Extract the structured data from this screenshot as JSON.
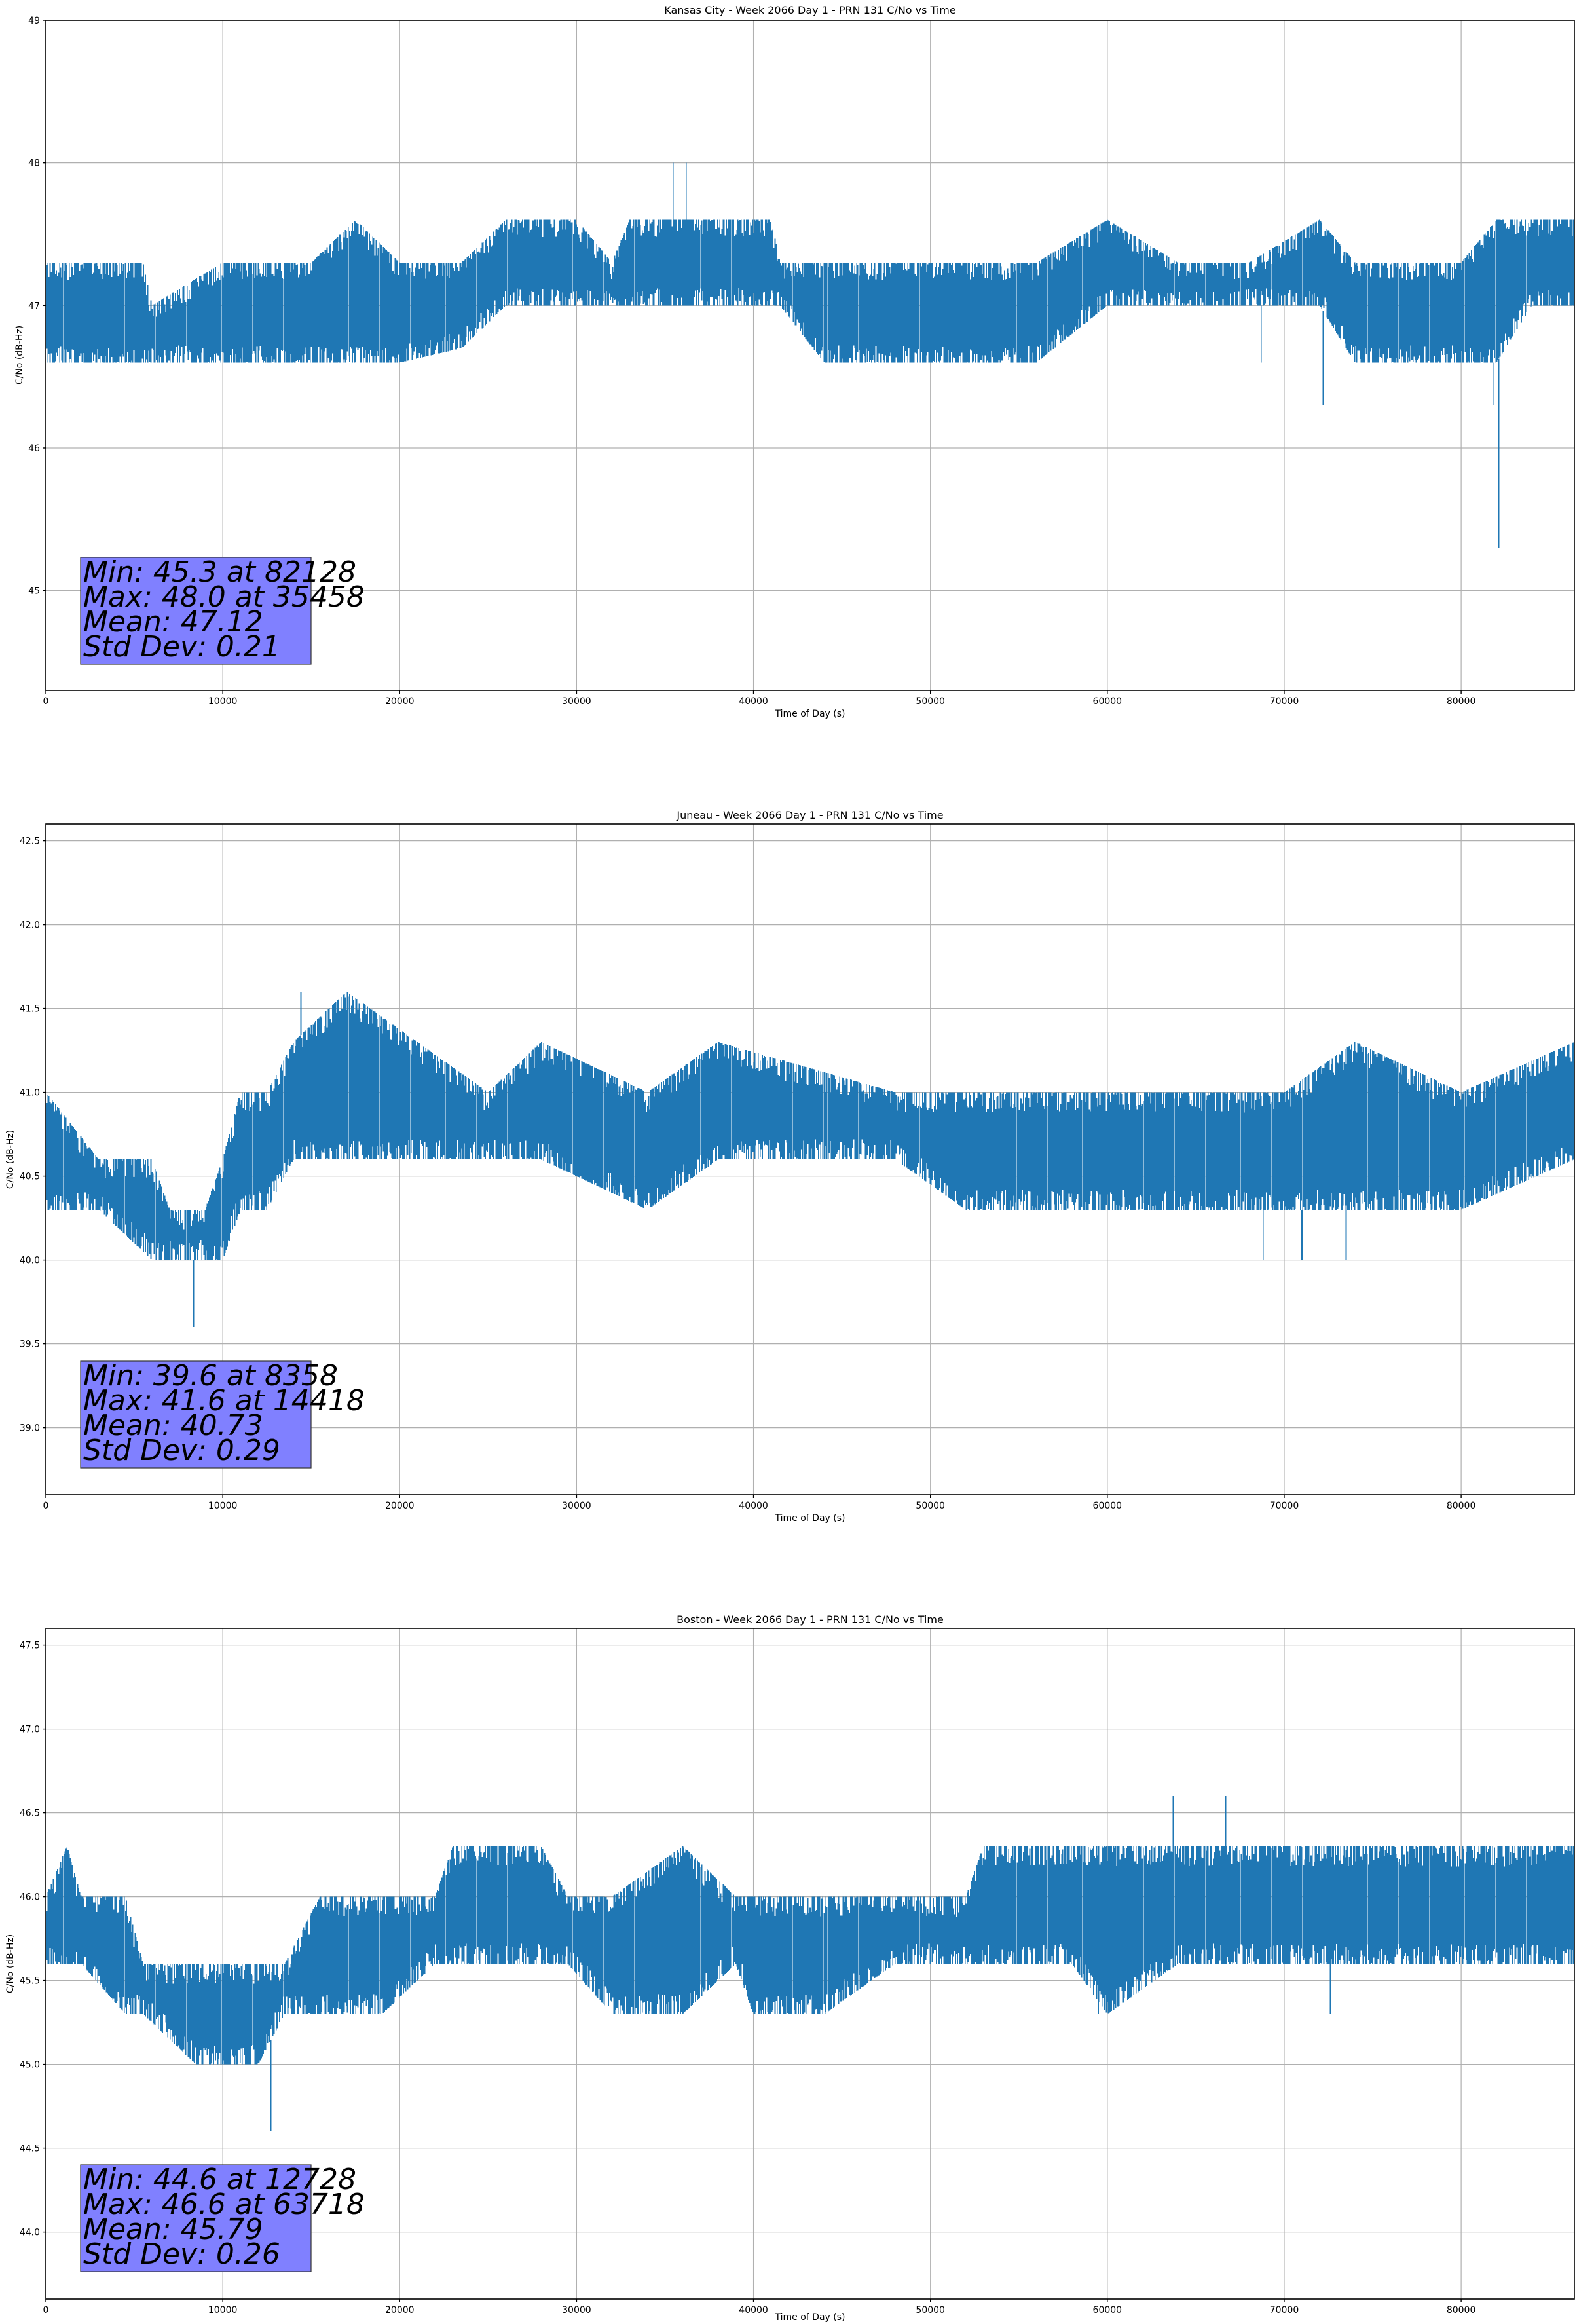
{
  "chart_data": [
    {
      "type": "line",
      "title": "Kansas City - Week 2066 Day 1 - PRN 131 C/No vs Time",
      "xlabel": "Time of Day (s)",
      "ylabel": "C/No (dB-Hz)",
      "xlim": [
        0,
        86400
      ],
      "ylim": [
        44.3,
        49
      ],
      "xticks": [
        0,
        10000,
        20000,
        30000,
        40000,
        50000,
        60000,
        70000,
        80000
      ],
      "yticks": [
        45,
        46,
        47,
        48,
        49
      ],
      "ytick_labels": [
        "45",
        "46",
        "47",
        "48",
        "49"
      ],
      "grid": true,
      "series_color": "#1f77b4",
      "profile": [
        [
          0,
          46.6,
          47.3
        ],
        [
          5500,
          46.6,
          47.3
        ],
        [
          6000,
          46.6,
          47.0
        ],
        [
          10000,
          46.6,
          47.3
        ],
        [
          15000,
          46.6,
          47.3
        ],
        [
          17500,
          46.6,
          47.6
        ],
        [
          20000,
          46.6,
          47.3
        ],
        [
          23500,
          46.7,
          47.3
        ],
        [
          26000,
          47.0,
          47.6
        ],
        [
          30000,
          47.0,
          47.6
        ],
        [
          32000,
          47.0,
          47.3
        ],
        [
          33000,
          47.0,
          47.6
        ],
        [
          35000,
          47.0,
          47.6
        ],
        [
          39000,
          47.0,
          47.6
        ],
        [
          41000,
          47.0,
          47.6
        ],
        [
          41500,
          47.0,
          47.3
        ],
        [
          44000,
          46.6,
          47.3
        ],
        [
          48000,
          46.6,
          47.3
        ],
        [
          52000,
          46.6,
          47.3
        ],
        [
          56000,
          46.6,
          47.3
        ],
        [
          60000,
          47.0,
          47.6
        ],
        [
          64000,
          47.0,
          47.3
        ],
        [
          68000,
          47.0,
          47.3
        ],
        [
          72000,
          47.0,
          47.6
        ],
        [
          74000,
          46.6,
          47.3
        ],
        [
          77000,
          46.6,
          47.3
        ],
        [
          80000,
          46.6,
          47.3
        ],
        [
          82000,
          46.6,
          47.6
        ],
        [
          84000,
          47.0,
          47.6
        ],
        [
          86400,
          47.0,
          47.6
        ]
      ],
      "spikes": [
        [
          35458,
          48.0
        ],
        [
          36200,
          48.0
        ],
        [
          68700,
          46.6
        ],
        [
          72200,
          46.3
        ],
        [
          81800,
          46.3
        ],
        [
          82128,
          45.3
        ]
      ],
      "stats": [
        "Min: 45.3 at 82128",
        "Max: 48.0 at 35458",
        "Mean: 47.12",
        "Std Dev: 0.21"
      ],
      "stats_box_color": "#8080ff"
    },
    {
      "type": "line",
      "title": "Juneau - Week 2066 Day 1 - PRN 131 C/No vs Time",
      "xlabel": "Time of Day (s)",
      "ylabel": "C/No (dB-Hz)",
      "xlim": [
        0,
        86400
      ],
      "ylim": [
        38.6,
        42.6
      ],
      "xticks": [
        0,
        10000,
        20000,
        30000,
        40000,
        50000,
        60000,
        70000,
        80000
      ],
      "yticks": [
        39.0,
        39.5,
        40.0,
        40.5,
        41.0,
        41.5,
        42.0,
        42.5
      ],
      "ytick_labels": [
        "39.0",
        "39.5",
        "40.0",
        "40.5",
        "41.0",
        "41.5",
        "42.0",
        "42.5"
      ],
      "grid": true,
      "series_color": "#1f77b4",
      "profile": [
        [
          0,
          40.3,
          41.0
        ],
        [
          3000,
          40.3,
          40.6
        ],
        [
          6000,
          40.0,
          40.6
        ],
        [
          7000,
          40.0,
          40.3
        ],
        [
          9000,
          40.0,
          40.3
        ],
        [
          10000,
          40.0,
          40.6
        ],
        [
          11000,
          40.3,
          41.0
        ],
        [
          12500,
          40.3,
          41.0
        ],
        [
          14000,
          40.6,
          41.3
        ],
        [
          17000,
          40.6,
          41.6
        ],
        [
          21000,
          40.6,
          41.3
        ],
        [
          25000,
          40.6,
          41.0
        ],
        [
          28000,
          40.6,
          41.3
        ],
        [
          34000,
          40.3,
          41.0
        ],
        [
          38000,
          40.6,
          41.3
        ],
        [
          48000,
          40.6,
          41.0
        ],
        [
          52000,
          40.3,
          41.0
        ],
        [
          60000,
          40.3,
          41.0
        ],
        [
          64000,
          40.3,
          41.0
        ],
        [
          70000,
          40.3,
          41.0
        ],
        [
          74000,
          40.3,
          41.3
        ],
        [
          80000,
          40.3,
          41.0
        ],
        [
          86400,
          40.6,
          41.3
        ]
      ],
      "spikes": [
        [
          8358,
          39.6
        ],
        [
          14418,
          41.6
        ],
        [
          68800,
          40.0
        ],
        [
          71000,
          40.0
        ],
        [
          73500,
          40.0
        ]
      ],
      "stats": [
        "Min: 39.6 at 8358",
        "Max: 41.6 at 14418",
        "Mean: 40.73",
        "Std Dev: 0.29"
      ],
      "stats_box_color": "#8080ff"
    },
    {
      "type": "line",
      "title": "Boston - Week 2066 Day 1 - PRN 131 C/No vs Time",
      "xlabel": "Time of Day (s)",
      "ylabel": "C/No (dB-Hz)",
      "xlim": [
        0,
        86400
      ],
      "ylim": [
        43.6,
        47.6
      ],
      "xticks": [
        0,
        10000,
        20000,
        30000,
        40000,
        50000,
        60000,
        70000,
        80000
      ],
      "yticks": [
        44.0,
        44.5,
        45.0,
        45.5,
        46.0,
        46.5,
        47.0,
        47.5
      ],
      "ytick_labels": [
        "44.0",
        "44.5",
        "45.0",
        "45.5",
        "46.0",
        "46.5",
        "47.0",
        "47.5"
      ],
      "grid": true,
      "series_color": "#1f77b4",
      "profile": [
        [
          0,
          45.6,
          46.0
        ],
        [
          1200,
          45.6,
          46.3
        ],
        [
          2000,
          45.6,
          46.0
        ],
        [
          4500,
          45.3,
          46.0
        ],
        [
          5500,
          45.3,
          45.6
        ],
        [
          8500,
          45.0,
          45.6
        ],
        [
          12000,
          45.0,
          45.6
        ],
        [
          13500,
          45.3,
          45.6
        ],
        [
          15500,
          45.3,
          46.0
        ],
        [
          19000,
          45.3,
          46.0
        ],
        [
          22000,
          45.6,
          46.0
        ],
        [
          23000,
          45.6,
          46.3
        ],
        [
          28000,
          45.6,
          46.3
        ],
        [
          29500,
          45.6,
          46.0
        ],
        [
          32000,
          45.3,
          46.0
        ],
        [
          36000,
          45.3,
          46.3
        ],
        [
          39000,
          45.6,
          46.0
        ],
        [
          40000,
          45.3,
          46.0
        ],
        [
          44000,
          45.3,
          46.0
        ],
        [
          48000,
          45.6,
          46.0
        ],
        [
          52000,
          45.6,
          46.0
        ],
        [
          53000,
          45.6,
          46.3
        ],
        [
          58000,
          45.6,
          46.3
        ],
        [
          60000,
          45.3,
          46.3
        ],
        [
          64000,
          45.6,
          46.3
        ],
        [
          70000,
          45.6,
          46.3
        ],
        [
          74000,
          45.6,
          46.3
        ],
        [
          80000,
          45.6,
          46.3
        ],
        [
          86400,
          45.6,
          46.3
        ]
      ],
      "spikes": [
        [
          12728,
          44.6
        ],
        [
          63718,
          46.6
        ],
        [
          66700,
          46.6
        ],
        [
          72600,
          45.3
        ],
        [
          59500,
          45.3
        ]
      ],
      "stats": [
        "Min: 44.6 at 12728",
        "Max: 46.6 at 63718",
        "Mean: 45.79",
        "Std Dev: 0.26"
      ],
      "stats_box_color": "#8080ff"
    }
  ]
}
